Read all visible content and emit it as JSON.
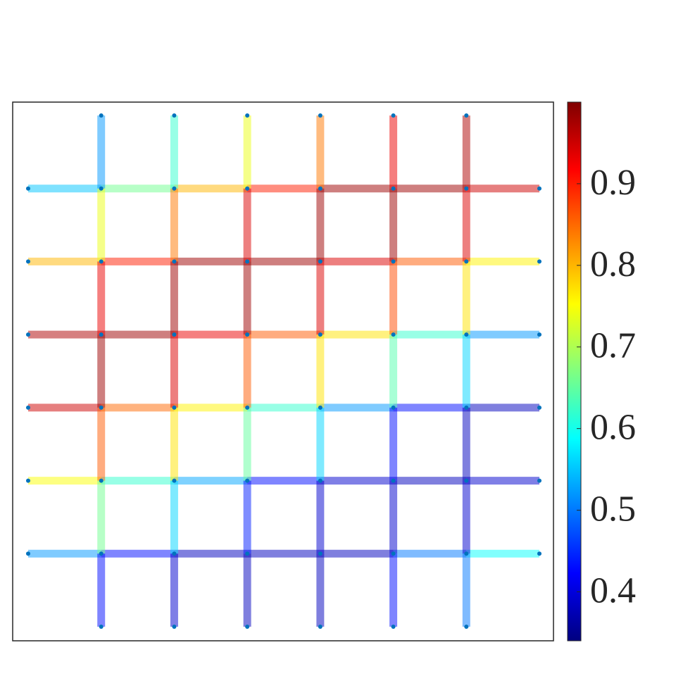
{
  "chart_data": {
    "type": "grid-network",
    "colormap": "jet",
    "edge_alpha": 0.5,
    "node_color": "#0072bd",
    "h_edges": [
      [
        0.55,
        0.66,
        0.8,
        0.9,
        0.98,
        0.98,
        0.95
      ],
      [
        0.8,
        0.9,
        0.98,
        0.98,
        0.94,
        0.86,
        0.76
      ],
      [
        0.97,
        0.98,
        0.93,
        0.86,
        0.77,
        0.62,
        0.52
      ],
      [
        0.95,
        0.85,
        0.76,
        0.62,
        0.52,
        0.43,
        0.38
      ],
      [
        0.75,
        0.62,
        0.53,
        0.43,
        0.39,
        0.38,
        0.39
      ],
      [
        0.52,
        0.43,
        0.38,
        0.38,
        0.38,
        0.5,
        0.59
      ]
    ],
    "v_edges": [
      [
        0.52,
        0.74,
        0.93,
        0.98,
        0.86,
        0.66,
        0.43
      ],
      [
        0.62,
        0.84,
        0.98,
        0.94,
        0.77,
        0.56,
        0.39
      ],
      [
        0.74,
        0.94,
        0.98,
        0.86,
        0.65,
        0.44,
        0.38
      ],
      [
        0.84,
        0.98,
        0.94,
        0.77,
        0.56,
        0.39,
        0.38
      ],
      [
        0.93,
        0.98,
        0.87,
        0.64,
        0.43,
        0.39,
        0.43
      ],
      [
        0.97,
        0.94,
        0.77,
        0.56,
        0.38,
        0.39,
        0.5
      ]
    ],
    "clim": [
      0.34,
      1.0
    ],
    "cticks": [
      0.4,
      0.5,
      0.6,
      0.7,
      0.8,
      0.9
    ]
  }
}
